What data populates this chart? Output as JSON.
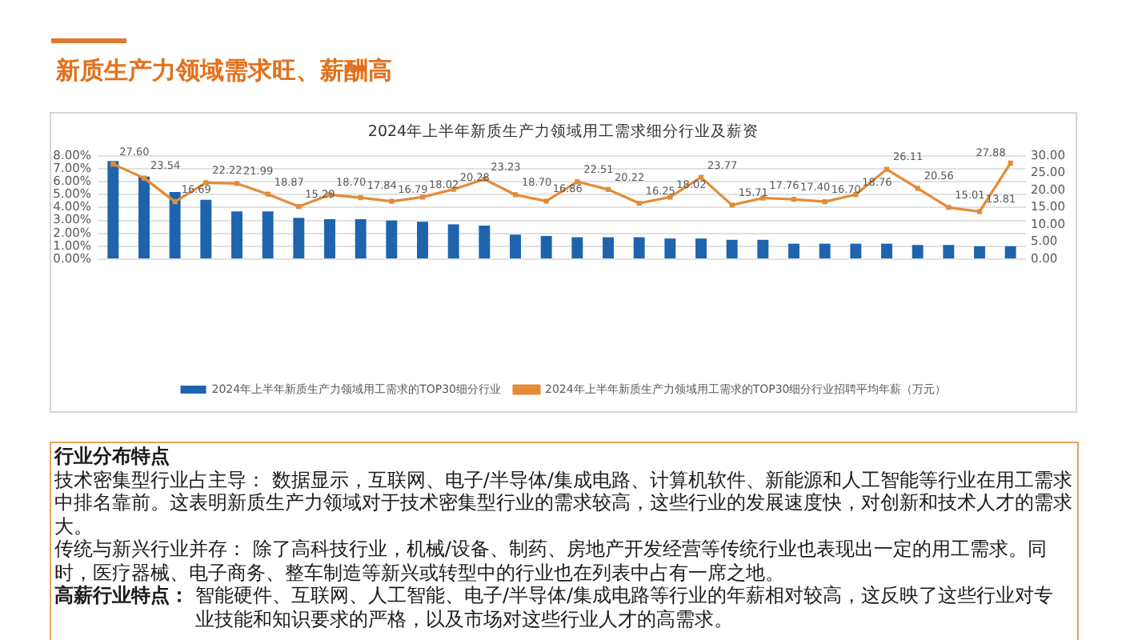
{
  "chart_data": {
    "type": "bar",
    "title": "新质生产力领域需求旺、薪酬高",
    "subtitle": "2024年上半年新质生产力领域用工需求细分行业及薪资",
    "categories": [
      null,
      null,
      null,
      null,
      null,
      null,
      null,
      null,
      null,
      null,
      null,
      null,
      null,
      null,
      null,
      null,
      null,
      null,
      null,
      null,
      null,
      null,
      null,
      null,
      null,
      null,
      null,
      null,
      null,
      null
    ],
    "series": [
      {
        "name": "2024年上半年新质生产力领域用工需求的TOP30细分行业",
        "color": "#1d64ad",
        "values": [
          7.6,
          6.4,
          5.2,
          4.6,
          3.7,
          3.7,
          3.2,
          3.1,
          3.1,
          3.0,
          2.9,
          2.7,
          2.6,
          1.9,
          1.8,
          1.7,
          1.7,
          1.7,
          1.6,
          1.6,
          1.5,
          1.5,
          1.2,
          1.2,
          1.2,
          1.2,
          1.1,
          1.1,
          1.0,
          1.0
        ]
      },
      {
        "name": "2024年上半年新质生产力领域用工需求的TOP30细分行业招聘平均年薪（万元）",
        "type": "line",
        "axis": "y2",
        "color": "#e48b38",
        "values": [
          27.6,
          23.54,
          16.69,
          22.22,
          21.99,
          18.87,
          15.29,
          18.7,
          17.84,
          16.79,
          18.02,
          20.28,
          23.23,
          18.7,
          16.86,
          22.51,
          20.22,
          16.25,
          18.02,
          23.77,
          15.71,
          17.76,
          17.4,
          16.7,
          18.76,
          26.11,
          20.56,
          15.01,
          13.81,
          27.88
        ],
        "value_labels": [
          "27.60",
          "23.54",
          "16.69",
          "22.22",
          "21.99",
          "18.87",
          "15.29",
          "18.70",
          "17.84",
          "16.79",
          "18.02",
          "20.28",
          "23.23",
          "18.70",
          "16.86",
          "22.51",
          "20.22",
          "16.25",
          "18.02",
          "23.77",
          "15.71",
          "17.76",
          "17.40",
          "16.70",
          "18.76",
          "26.11",
          "20.56",
          "15.01",
          "13.81",
          "27.88"
        ]
      }
    ],
    "ylim": [
      0,
      8
    ],
    "yticks": [
      {
        "value": 0,
        "label": "0.00%"
      },
      {
        "value": 1,
        "label": "1.00%"
      },
      {
        "value": 2,
        "label": "2.00%"
      },
      {
        "value": 3,
        "label": "3.00%"
      },
      {
        "value": 4,
        "label": "4.00%"
      },
      {
        "value": 5,
        "label": "5.00%"
      },
      {
        "value": 6,
        "label": "6.00%"
      },
      {
        "value": 7,
        "label": "7.00%"
      },
      {
        "value": 8,
        "label": "8.00%"
      }
    ],
    "y2lim": [
      0,
      30
    ],
    "y2ticks": [
      {
        "value": 0,
        "label": "0.00"
      },
      {
        "value": 5,
        "label": "5.00"
      },
      {
        "value": 10,
        "label": "10.00"
      },
      {
        "value": 15,
        "label": "15.00"
      },
      {
        "value": 20,
        "label": "20.00"
      },
      {
        "value": 25,
        "label": "25.00"
      },
      {
        "value": 30,
        "label": "30.00"
      }
    ],
    "grid": "y",
    "legend": "bottom",
    "marker": "square",
    "line_style": "solid",
    "annotations": [
      "行业分布特点",
      "技术密集型行业占主导： 数据显示，互联网、电子/半导体/集成电路、计算机软件、新能源和人工智能等行业在用工需求中排名靠前。这表明新质生产力领域对于技术密集型行业的需求较高，这些行业的发展速度快，对创新和技术人才的需求大。",
      "传统与新兴行业并存： 除了高科技行业，机械/设备、制药、房地产开发经营等传统行业也表现出一定的用工需求。同时，医疗器械、电子商务、整车制造等新兴或转型中的行业也在列表中占有一席之地。",
      "高薪行业特点：",
      "智能硬件、互联网、人工智能、电子/半导体/集成电路等行业的年薪相对较高，这反映了这些行业对专业技能和知识要求的严格，以及市场对这些行业人才的高需求。"
    ]
  }
}
